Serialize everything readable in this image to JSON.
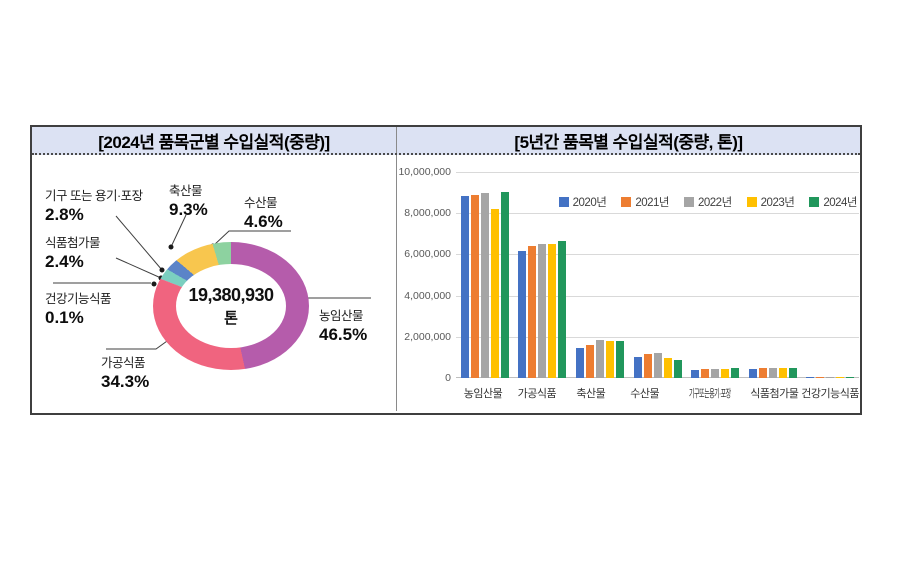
{
  "left_panel": {
    "title": "[2024년 품목군별 수입실적(중량)]"
  },
  "right_panel": {
    "title": "[5년간 품목별 수입실적(중량, 톤)]"
  },
  "chart_data": [
    {
      "type": "pie",
      "title": "[2024년 품목군별 수입실적(중량)]",
      "donut": true,
      "center_label": {
        "value": "19,380,930",
        "unit": "톤"
      },
      "slices": [
        {
          "label": "농임산물",
          "pct": 46.5,
          "pct_label": "46.5%",
          "color": "#b55cab"
        },
        {
          "label": "가공식품",
          "pct": 34.3,
          "pct_label": "34.3%",
          "color": "#f0647f"
        },
        {
          "label": "건강기능식품",
          "pct": 0.1,
          "pct_label": "0.1%",
          "color": "#d98ca6"
        },
        {
          "label": "식품첨가물",
          "pct": 2.4,
          "pct_label": "2.4%",
          "color": "#7bcfc0"
        },
        {
          "label": "기구 또는 용기·포장",
          "pct": 2.8,
          "pct_label": "2.8%",
          "color": "#5b84c8"
        },
        {
          "label": "축산물",
          "pct": 9.3,
          "pct_label": "9.3%",
          "color": "#f8c64e"
        },
        {
          "label": "수산물",
          "pct": 4.6,
          "pct_label": "4.6%",
          "color": "#8dd2a0"
        }
      ]
    },
    {
      "type": "bar",
      "title": "[5년간 품목별 수입실적(중량, 톤)]",
      "categories": [
        "농임산물",
        "가공식품",
        "축산물",
        "수산물",
        "기구또는용기·포장",
        "식품첨가물",
        "건강기능식품"
      ],
      "series": [
        {
          "name": "2020년",
          "color": "#4472c4",
          "values": [
            8880000,
            6210000,
            1470000,
            1000000,
            390000,
            450000,
            30000
          ]
        },
        {
          "name": "2021년",
          "color": "#ed7d31",
          "values": [
            8930000,
            6460000,
            1600000,
            1170000,
            440000,
            470000,
            30000
          ]
        },
        {
          "name": "2022년",
          "color": "#a5a5a5",
          "values": [
            9040000,
            6540000,
            1840000,
            1230000,
            430000,
            490000,
            40000
          ]
        },
        {
          "name": "2023년",
          "color": "#ffc000",
          "values": [
            8240000,
            6540000,
            1800000,
            970000,
            430000,
            470000,
            30000
          ]
        },
        {
          "name": "2024년",
          "color": "#21975c",
          "values": [
            9080000,
            6700000,
            1800000,
            880000,
            500000,
            480000,
            40000
          ]
        }
      ],
      "ylim": [
        0,
        10000000
      ],
      "yticks": [
        "10,000,000",
        "8,000,000",
        "6,000,000",
        "4,000,000",
        "2,000,000",
        "0"
      ],
      "grid": true,
      "legend_position": "top-right"
    }
  ]
}
